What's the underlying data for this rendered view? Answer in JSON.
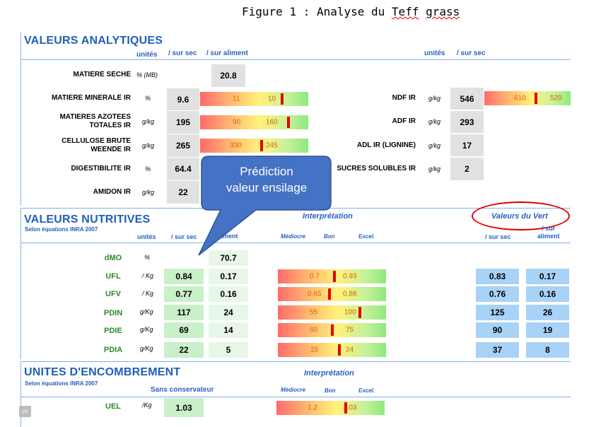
{
  "caption": {
    "prefix": "Figure 1 : Analyse du ",
    "word1": "Teff",
    "space": " ",
    "word2": "grass"
  },
  "analytiques": {
    "title": "VALEURS ANALYTIQUES",
    "col_unites": "unités",
    "col_sec": "/ sur sec",
    "col_aliment": "/ sur aliment",
    "col_unites_r": "unités",
    "col_sec_r": "/ sur sec",
    "rows_left": [
      {
        "label": "MATIERE SECHE",
        "unit": "% (MB)",
        "aliment": "20.8"
      },
      {
        "label": "MATIERE MINERALE IR",
        "unit": "%",
        "sec": "9.6",
        "bar_a": "11",
        "bar_b": "10",
        "marker": 0.76
      },
      {
        "label": "MATIERES AZOTEES\nTOTALES IR",
        "unit": "g/kg",
        "sec": "195",
        "bar_a": "90",
        "bar_b": "160",
        "marker": 0.82
      },
      {
        "label": "CELLULOSE BRUTE\nWEENDE IR",
        "unit": "g/kg",
        "sec": "265",
        "bar_a": "330",
        "bar_b": "245",
        "marker": 0.57
      },
      {
        "label": "DIGESTIBILITE IR",
        "unit": "%",
        "sec": "64.4"
      },
      {
        "label": "AMIDON IR",
        "unit": "g/kg",
        "sec": "22"
      }
    ],
    "rows_right": [
      {
        "label": "NDF IR",
        "unit": "g/kg",
        "sec": "546",
        "bar_a": "610",
        "bar_b": "520",
        "marker": 0.6
      },
      {
        "label": "ADF IR",
        "unit": "g/kg",
        "sec": "293"
      },
      {
        "label": "ADL IR (LIGNINE)",
        "unit": "g/kg",
        "sec": "17"
      },
      {
        "label": "SUCRES SOLUBLES IR",
        "unit": "g/kg",
        "sec": "2"
      }
    ]
  },
  "callout": {
    "line1": "Prédiction",
    "line2": "valeur ensilage"
  },
  "nutritives": {
    "title": "VALEURS NUTRITIVES",
    "subtitle": "Selon équations INRA 2007",
    "col_unites": "unités",
    "col_sec": "/ sur sec",
    "col_aliment": "sur\naliment",
    "interp": "Interprétation",
    "mediocre": "Médiocre",
    "bon": "Bon",
    "excel": "Excel.",
    "vert_title": "Valeurs du Vert",
    "vert_sec": "/ sur sec",
    "vert_aliment": "/ sur\naliment",
    "rows": [
      {
        "name": "dMO",
        "unit": "%",
        "aliment": "70.7"
      },
      {
        "name": "UFL",
        "unit": "/ Kg",
        "sec": "0.84",
        "aliment": "0.17",
        "bar_a": "0.7",
        "bar_b": "0.93",
        "marker": 0.52,
        "vert_sec": "0.83",
        "vert_aliment": "0.17"
      },
      {
        "name": "UFV",
        "unit": "/ Kg",
        "sec": "0.77",
        "aliment": "0.16",
        "bar_a": "0.65",
        "bar_b": "0.88",
        "marker": 0.48,
        "vert_sec": "0.76",
        "vert_aliment": "0.16"
      },
      {
        "name": "PDIN",
        "unit": "g/Kg",
        "sec": "117",
        "aliment": "24",
        "bar_a": "55",
        "bar_b": "100",
        "marker": 0.76,
        "vert_sec": "125",
        "vert_aliment": "26"
      },
      {
        "name": "PDIE",
        "unit": "g/Kg",
        "sec": "69",
        "aliment": "14",
        "bar_a": "60",
        "bar_b": "75",
        "marker": 0.5,
        "vert_sec": "90",
        "vert_aliment": "19"
      },
      {
        "name": "PDIA",
        "unit": "g/Kg",
        "sec": "22",
        "aliment": "5",
        "bar_a": "15",
        "bar_b": "24",
        "marker": 0.57,
        "vert_sec": "37",
        "vert_aliment": "8"
      }
    ]
  },
  "encombrement": {
    "title": "UNITES D'ENCOMBREMENT",
    "subtitle": "Selon équations INRA 2007",
    "col": "Sans conservateur",
    "interp": "Interprétation",
    "mediocre": "Médiocre",
    "bon": "Bon",
    "excel": "Excel.",
    "row": {
      "name": "UEL",
      "unit": "/Kg",
      "value": "1.03",
      "bar_a": "1.2",
      "bar_b": "1.03",
      "marker": 0.64
    }
  },
  "corner_tag": "m",
  "colors": {
    "title_blue": "#1f5fb6",
    "marker_red": "#e20000",
    "callout_blue": "#4472c4",
    "ellipse_red": "#e00000"
  }
}
